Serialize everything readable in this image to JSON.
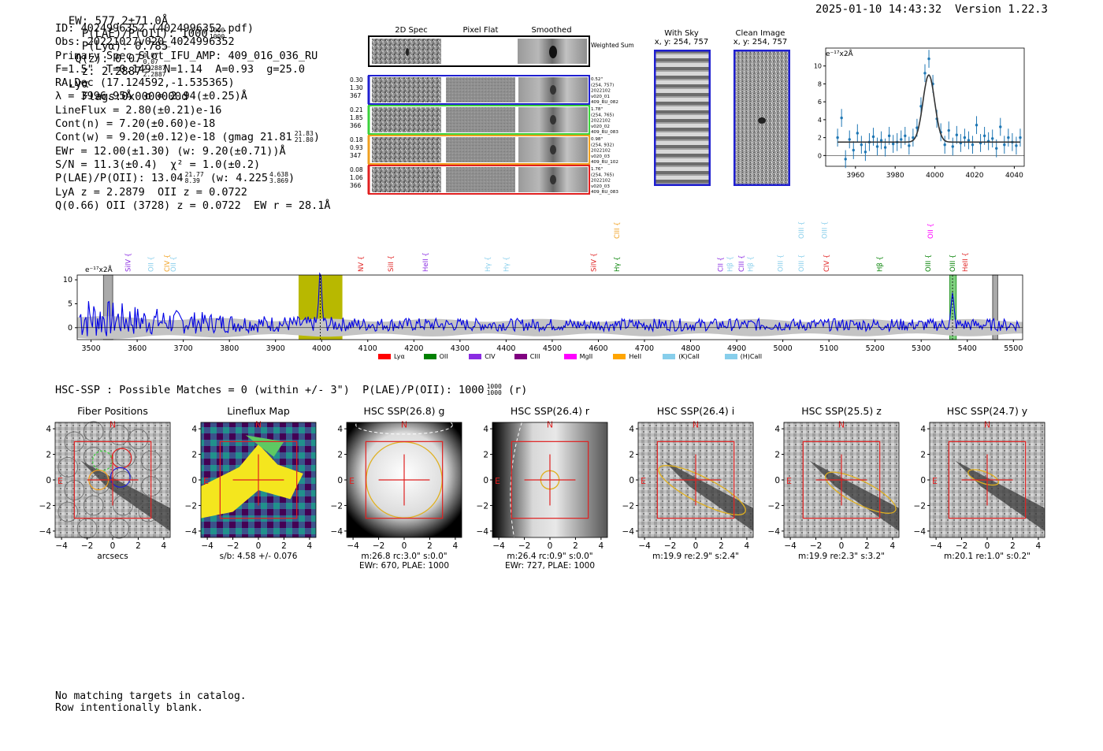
{
  "header": {
    "left": "EW: 577.2±71.0Å  P(LAE)/P(OII): 1000   P(Lyα): 0.785  Q(z): 0.07      z: 2.2887         Lyα  Flags:0x0000000d",
    "ew": "EW: 577.2±71.0Å",
    "plae_label": "P(LAE)/P(OII): 1000",
    "plae_sup": "1000",
    "plae_sub": "1000",
    "plya": "P(Lyα): 0.785",
    "qz": "Q(z): 0.07",
    "qz_sup": "0.07",
    "qz_sub": "0.07",
    "z": "z: 2.2887",
    "z_sup": "2.2887",
    "z_sub": "2.2887",
    "line": "Lyα",
    "flags": "Flags:0x0000000d",
    "right": "2025-01-10 14:43:32  Version 1.22.3"
  },
  "info": {
    "id": "ID: 4024996352 (4024996352.pdf)",
    "obs": "Obs: 20221027v020_4024996352",
    "primary": "Primary Spec_Slot_IFU_AMP: 409_016_036_RU",
    "fpars": "F=1.5\"  T=0.149  N=1.14  A=0.93  g=25.0",
    "radec": "RA,Dec (17.124592,-1.535365)",
    "lambda": "λ = 3996.95Å  σ = 2.94(±0.25)Å",
    "lineflux": "LineFlux = 2.80(±0.21)e-16",
    "contn": "Cont(n) = 7.20(±0.60)e-18",
    "contw": "Cont(w) = 9.20(±0.12)e-18 (gmag 21.81",
    "contw_sup": "21.83",
    "contw_sub": "21.80",
    "ewr": "EWr = 12.00(±1.30) (w: 9.20(±0.71))Å",
    "sn": "S/N = 11.3(±0.4)  χ² = 1.0(±0.2)",
    "plae": "P(LAE)/P(OII): 13.04",
    "plae_sup": "21.77",
    "plae_sub": "8.39",
    "plae_w": "(w: 4.225",
    "plae_w_sup": "4.638",
    "plae_w_sub": "3.869",
    "lya": "LyA z = 2.2879  OII z = 0.0722",
    "q": "Q(0.66) OII (3728) z = 0.0722  EW r = 28.1Å"
  },
  "spec2d": {
    "col_titles": [
      "2D Spec",
      "Pixel Flat",
      "Smoothed"
    ],
    "weighted_label": "Weighted Sum",
    "rows": [
      {
        "nums": [
          "0.30",
          "1.30",
          "367"
        ],
        "meta": [
          "0.52\"",
          "(254, 757)",
          "2022102",
          "v020_01",
          "409_RU_082"
        ],
        "color": "#1f1fd0"
      },
      {
        "nums": [
          "0.21",
          "1.85",
          "366"
        ],
        "meta": [
          "1.78\"",
          "(254, 765)",
          "2022102",
          "v020_02",
          "409_RU_083"
        ],
        "color": "#3cd23c"
      },
      {
        "nums": [
          "0.18",
          "0.93",
          "347"
        ],
        "meta": [
          "0.98\"",
          "(254, 932)",
          "2022102",
          "v020_03",
          "409_RU_102"
        ],
        "color": "#f0a020"
      },
      {
        "nums": [
          "0.08",
          "1.06",
          "366"
        ],
        "meta": [
          "1.76\"",
          "(254, 765)",
          "2022102",
          "v020_03",
          "409_RU_083"
        ],
        "color": "#e02020"
      }
    ]
  },
  "sky": {
    "title": "With Sky",
    "sub": "x, y: 254, 757"
  },
  "clean": {
    "title": "Clean Image",
    "sub": "x, y: 254, 757"
  },
  "chart_data": [
    {
      "type": "line",
      "name": "line-fit",
      "ylabel_unit": "e⁻¹⁷x2Å",
      "xlim": [
        3945,
        4045
      ],
      "ylim": [
        -1.2,
        12
      ],
      "xticks": [
        3960,
        3980,
        4000,
        4020,
        4040
      ],
      "yticks": [
        0,
        2,
        4,
        6,
        8,
        10
      ],
      "data_x": [
        3951,
        3953,
        3955,
        3957,
        3959,
        3961,
        3963,
        3965,
        3967,
        3969,
        3971,
        3973,
        3975,
        3977,
        3979,
        3981,
        3983,
        3985,
        3987,
        3989,
        3991,
        3993,
        3995,
        3997,
        3999,
        4001,
        4003,
        4005,
        4007,
        4009,
        4011,
        4013,
        4015,
        4017,
        4019,
        4021,
        4023,
        4025,
        4027,
        4029,
        4031,
        4033,
        4035,
        4037,
        4039,
        4041,
        4043
      ],
      "data_y": [
        2.0,
        4.2,
        -0.4,
        1.8,
        0.6,
        2.5,
        1.2,
        0.4,
        1.5,
        2.1,
        1.0,
        1.7,
        0.9,
        2.2,
        1.3,
        1.5,
        1.8,
        2.2,
        1.1,
        2.0,
        3.1,
        5.5,
        9.2,
        10.8,
        8.0,
        4.1,
        2.6,
        1.2,
        2.8,
        1.0,
        2.3,
        1.4,
        2.0,
        1.7,
        1.2,
        3.4,
        1.4,
        2.2,
        1.6,
        1.9,
        0.8,
        3.2,
        1.2,
        2.0,
        1.5,
        1.1,
        2.0
      ],
      "fit_cont": 1.5,
      "fit_amp": 7.5,
      "fit_center": 3996.95,
      "fit_sigma": 2.94
    },
    {
      "type": "line",
      "name": "full-spectrum",
      "ylabel_unit": "e⁻¹⁷x2Å",
      "xlim": [
        3470,
        5520
      ],
      "ylim": [
        -2.5,
        11
      ],
      "xticks": [
        3500,
        3600,
        3700,
        3800,
        3900,
        4000,
        4100,
        4200,
        4300,
        4400,
        4500,
        4600,
        4700,
        4800,
        4900,
        5000,
        5100,
        5200,
        5300,
        5400,
        5500
      ],
      "yticks": [
        0,
        5,
        10
      ],
      "highlight": [
        3950,
        4045
      ],
      "highlight_color": "#b8b800",
      "line_center": 3997,
      "green_band": [
        5362,
        5376
      ],
      "hatch_bands": [
        [
          3527,
          3547
        ],
        [
          5455,
          5466
        ]
      ],
      "lines": [
        {
          "label": "SiIV {",
          "x": 3580,
          "color": "#8a2be2",
          "row": 1
        },
        {
          "label": "OII {",
          "x": 3630,
          "color": "#87ceeb",
          "row": 1
        },
        {
          "label": "CIV {",
          "x": 3665,
          "color": "#f0a020",
          "row": 1
        },
        {
          "label": "OII {",
          "x": 3678,
          "color": "#87ceeb",
          "row": 1
        },
        {
          "label": "NV {",
          "x": 4085,
          "color": "#e02020",
          "row": 1
        },
        {
          "label": "SiII {",
          "x": 4150,
          "color": "#e02020",
          "row": 1
        },
        {
          "label": "HeII {",
          "x": 4225,
          "color": "#8a2be2",
          "row": 1
        },
        {
          "label": "Hγ {",
          "x": 4360,
          "color": "#87ceeb",
          "row": 1
        },
        {
          "label": "Hγ {",
          "x": 4400,
          "color": "#87ceeb",
          "row": 1
        },
        {
          "label": "SiIV {",
          "x": 4590,
          "color": "#e02020",
          "row": 1
        },
        {
          "label": "CIII {",
          "x": 4640,
          "color": "#f0a020",
          "row": 0
        },
        {
          "label": "Hγ {",
          "x": 4640,
          "color": "#008000",
          "row": 1
        },
        {
          "label": "CII {",
          "x": 4865,
          "color": "#8a2be2",
          "row": 1
        },
        {
          "label": "Hβ {",
          "x": 4885,
          "color": "#87ceeb",
          "row": 1
        },
        {
          "label": "CIII {",
          "x": 4910,
          "color": "#8a2be2",
          "row": 1
        },
        {
          "label": "Hβ {",
          "x": 4930,
          "color": "#87ceeb",
          "row": 1
        },
        {
          "label": "OIII {",
          "x": 4995,
          "color": "#87ceeb",
          "row": 1
        },
        {
          "label": "OIII {",
          "x": 5040,
          "color": "#87ceeb",
          "row": 0
        },
        {
          "label": "OIII {",
          "x": 5090,
          "color": "#87ceeb",
          "row": 0
        },
        {
          "label": "CIV {",
          "x": 5095,
          "color": "#e02020",
          "row": 1
        },
        {
          "label": "OIII {",
          "x": 5040,
          "color": "#87ceeb",
          "row": 1
        },
        {
          "label": "Hβ {",
          "x": 5210,
          "color": "#008000",
          "row": 1
        },
        {
          "label": "OIII {",
          "x": 5315,
          "color": "#008000",
          "row": 1
        },
        {
          "label": "OII {",
          "x": 5320,
          "color": "#ff00ff",
          "row": 0
        },
        {
          "label": "OIII {",
          "x": 5368,
          "color": "#008000",
          "row": 1
        },
        {
          "label": "HeII {",
          "x": 5395,
          "color": "#e02020",
          "row": 1
        }
      ],
      "legend": [
        {
          "label": "Lyα",
          "color": "#ff0000"
        },
        {
          "label": "OII",
          "color": "#008000"
        },
        {
          "label": "CIV",
          "color": "#8a2be2"
        },
        {
          "label": "CIII",
          "color": "#800080"
        },
        {
          "label": "MgII",
          "color": "#ff00ff"
        },
        {
          "label": "HeII",
          "color": "#ffa500"
        },
        {
          "label": "(K)CaII",
          "color": "#87ceeb"
        },
        {
          "label": "(H)CaII",
          "color": "#87ceeb"
        }
      ]
    }
  ],
  "hsc": {
    "title": "HSC-SSP : Possible Matches = 0 (within +/- 3\")  P(LAE)/P(OII): 1000",
    "title_sup": "1000",
    "title_sub": "1000",
    "title_tail": "(r)",
    "axis_ticks": [
      "−4",
      "−2",
      "0",
      "2",
      "4"
    ],
    "panels": [
      {
        "title": "Fiber Positions",
        "sub": [
          "arcsecs"
        ],
        "kind": "fiber"
      },
      {
        "title": "Lineflux Map",
        "sub": [
          "s/b: 4.58 +/- 0.076"
        ],
        "kind": "lineflux"
      },
      {
        "title": "HSC SSP(26.8) g",
        "sub": [
          "m:26.8 rc:3.0\"  s:0.0\"",
          "EWr: 670, PLAE: 1000"
        ],
        "kind": "g"
      },
      {
        "title": "HSC SSP(26.4) r",
        "sub": [
          "m:26.4 rc:0.9\"  s:0.0\"",
          "EWr: 727, PLAE: 1000"
        ],
        "kind": "r"
      },
      {
        "title": "HSC SSP(26.4) i",
        "sub": [
          "m:19.9  re:2.9\"  s:2.4\""
        ],
        "kind": "i"
      },
      {
        "title": "HSC SSP(25.5) z",
        "sub": [
          "m:19.9  re:2.3\"  s:3.2\""
        ],
        "kind": "z"
      },
      {
        "title": "HSC SSP(24.7) y",
        "sub": [
          "m:20.1  re:1.0\"  s:0.2\""
        ],
        "kind": "y"
      }
    ],
    "n_label": "N",
    "e_label": "E"
  },
  "footer": {
    "line1": "No matching targets in catalog.",
    "line2": "Row intentionally blank."
  }
}
